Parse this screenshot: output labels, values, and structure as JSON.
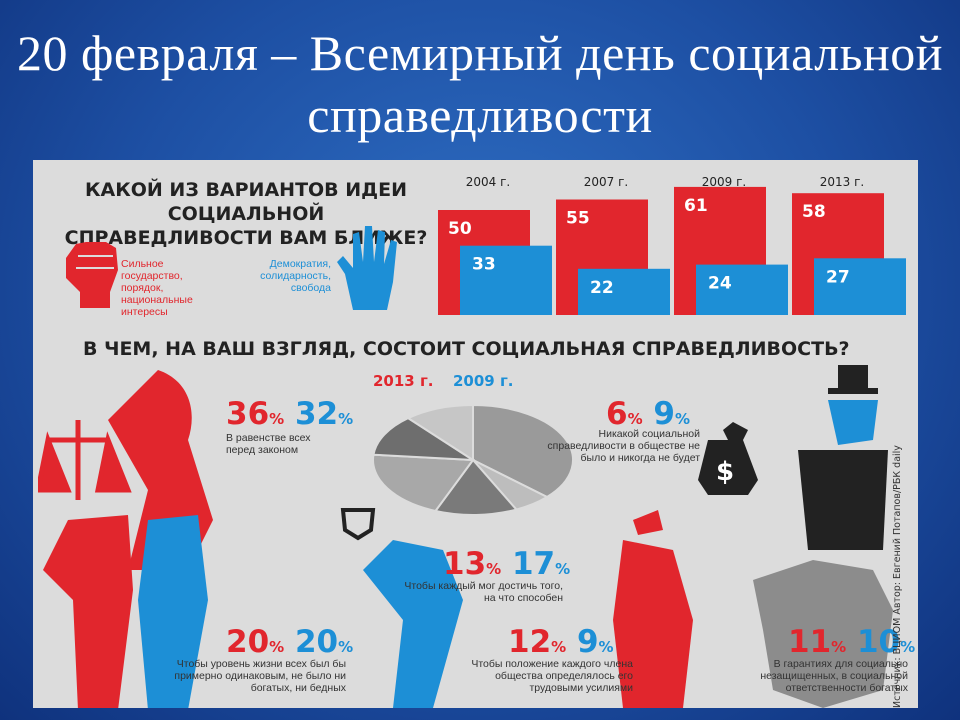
{
  "slide_title": "20 февраля – Всемирный день социальной справедливости",
  "question1": "КАКОЙ ИЗ ВАРИАНТОВ ИДЕИ СОЦИАЛЬНОЙ СПРАВЕДЛИВОСТИ ВАМ БЛИЖЕ?",
  "option_red": "Сильное государство, порядок, национальные интересы",
  "option_blue": "Демократия, солидарность, свобода",
  "question2": "В ЧЕМ, НА ВАШ ВЗГЛЯД, СОСТОИТ СОЦИАЛЬНАЯ СПРАВЕДЛИВОСТЬ?",
  "pie_legend": {
    "red": "2013 г.",
    "blue": "2009 г."
  },
  "source": "Источник: ВЦИОМ   Автор: Евгений Потапов/РБК daily",
  "colors": {
    "red": "#e1262d",
    "blue": "#1d8fd6",
    "gray": "#8c8c8c"
  },
  "chart_data": [
    {
      "type": "bar",
      "categories": [
        "2004 г.",
        "2007 г.",
        "2009 г.",
        "2013 г."
      ],
      "series": [
        {
          "name": "Сильное государство, порядок, национальные интересы",
          "values": [
            50,
            55,
            61,
            58
          ]
        },
        {
          "name": "Демократия, солидарность, свобода",
          "values": [
            33,
            22,
            24,
            27
          ]
        }
      ]
    },
    {
      "type": "pie",
      "categories": [
        "В равенстве всех перед законом",
        "Никакой социальной справедливости в обществе не было и никогда не будет",
        "Чтобы каждый мог достичь того, на что способен",
        "Чтобы уровень жизни всех был бы примерно одинаковым, не было ни богатых, ни бедных",
        "Чтобы положение каждого члена общества определялось его трудовыми усилиями",
        "В гарантиях для социально незащищенных, в социальной ответственности богатых"
      ],
      "series": [
        {
          "name": "2013 г.",
          "values": [
            36,
            6,
            13,
            20,
            12,
            11
          ]
        },
        {
          "name": "2009 г.",
          "values": [
            32,
            9,
            17,
            20,
            9,
            10
          ]
        }
      ],
      "unit": "%"
    }
  ]
}
